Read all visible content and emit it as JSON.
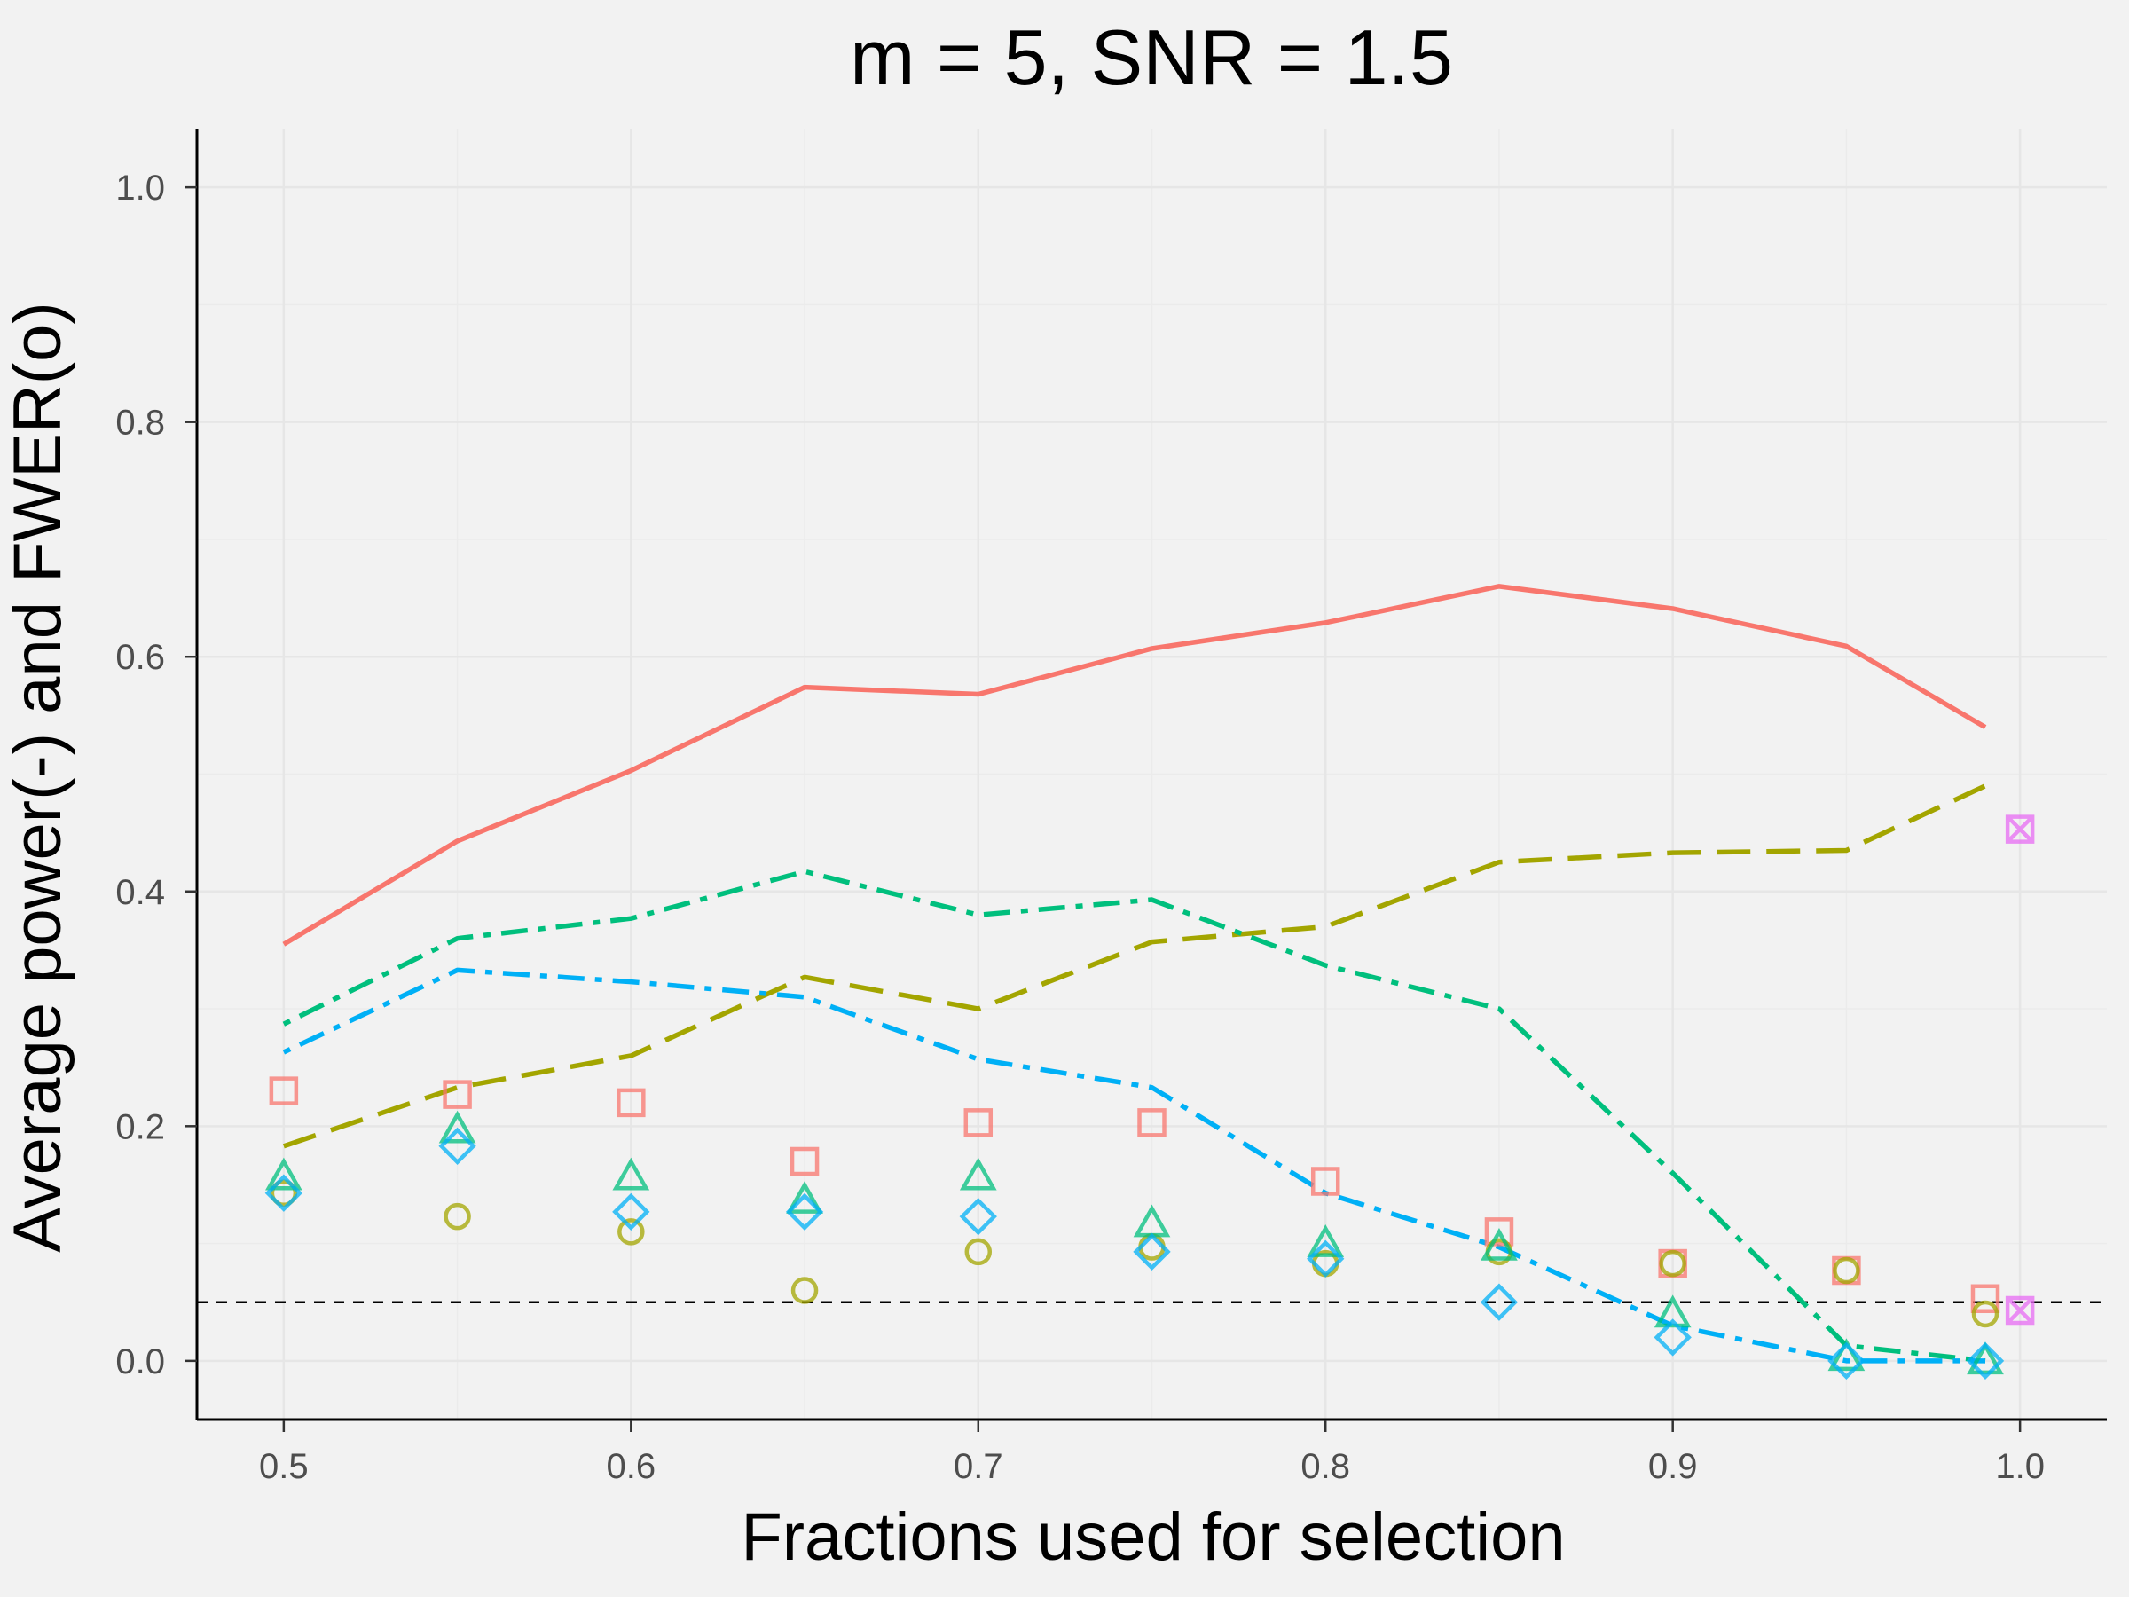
{
  "chart_data": {
    "type": "line",
    "title": "m = 5, SNR = 1.5",
    "xlabel": "Fractions used for selection",
    "ylabel": "Average power(-) and FWER(o)",
    "xlim": [
      0.475,
      1.025
    ],
    "ylim": [
      -0.05,
      1.05
    ],
    "x_ticks": [
      "0.5",
      "0.6",
      "0.7",
      "0.8",
      "0.9",
      "1.0"
    ],
    "y_ticks": [
      "0.0",
      "0.2",
      "0.4",
      "0.6",
      "0.8",
      "1.0"
    ],
    "grid": true,
    "legend": "none",
    "reference_line": {
      "y": 0.05,
      "style": "dashed",
      "color": "#000000"
    },
    "series": [
      {
        "color": "#F8766D",
        "line": "solid",
        "marker": "square",
        "power": {
          "x": [
            0.5,
            0.55,
            0.6,
            0.65,
            0.7,
            0.75,
            0.8,
            0.85,
            0.9,
            0.95,
            0.99
          ],
          "y": [
            0.355,
            0.443,
            0.503,
            0.574,
            0.568,
            0.607,
            0.629,
            0.66,
            0.641,
            0.609,
            0.54
          ]
        },
        "fwer": {
          "x": [
            0.5,
            0.55,
            0.6,
            0.65,
            0.7,
            0.75,
            0.8,
            0.85,
            0.9,
            0.95,
            0.99
          ],
          "y": [
            0.23,
            0.227,
            0.22,
            0.17,
            0.203,
            0.203,
            0.153,
            0.11,
            0.083,
            0.077,
            0.053
          ]
        }
      },
      {
        "color": "#A3A500",
        "line": "longdash",
        "marker": "circle",
        "power": {
          "x": [
            0.5,
            0.55,
            0.6,
            0.65,
            0.7,
            0.75,
            0.8,
            0.85,
            0.9,
            0.95,
            0.99
          ],
          "y": [
            0.183,
            0.233,
            0.26,
            0.327,
            0.3,
            0.357,
            0.37,
            0.425,
            0.433,
            0.435,
            0.49
          ]
        },
        "fwer": {
          "x": [
            0.5,
            0.55,
            0.6,
            0.65,
            0.7,
            0.75,
            0.8,
            0.85,
            0.9,
            0.95,
            0.99
          ],
          "y": [
            0.143,
            0.123,
            0.11,
            0.06,
            0.093,
            0.097,
            0.083,
            0.093,
            0.083,
            0.077,
            0.04
          ]
        }
      },
      {
        "color": "#00BF7D",
        "line": "dotdash",
        "marker": "triangle",
        "power": {
          "x": [
            0.5,
            0.55,
            0.6,
            0.65,
            0.7,
            0.75,
            0.8,
            0.85,
            0.9,
            0.95,
            0.99
          ],
          "y": [
            0.287,
            0.36,
            0.377,
            0.417,
            0.38,
            0.393,
            0.337,
            0.3,
            0.16,
            0.013,
            0.0
          ]
        },
        "fwer": {
          "x": [
            0.5,
            0.55,
            0.6,
            0.65,
            0.7,
            0.75,
            0.8,
            0.85,
            0.9,
            0.95,
            0.99
          ],
          "y": [
            0.157,
            0.197,
            0.157,
            0.137,
            0.157,
            0.117,
            0.1,
            0.097,
            0.04,
            0.003,
            0.0
          ]
        }
      },
      {
        "color": "#00B0F6",
        "line": "dotdash",
        "marker": "diamond",
        "power": {
          "x": [
            0.5,
            0.55,
            0.6,
            0.65,
            0.7,
            0.75,
            0.8,
            0.85,
            0.9,
            0.95,
            0.99
          ],
          "y": [
            0.263,
            0.333,
            0.323,
            0.31,
            0.257,
            0.233,
            0.143,
            0.097,
            0.03,
            0.0,
            0.0
          ]
        },
        "fwer": {
          "x": [
            0.5,
            0.55,
            0.6,
            0.65,
            0.7,
            0.75,
            0.8,
            0.85,
            0.9,
            0.95,
            0.99
          ],
          "y": [
            0.143,
            0.183,
            0.127,
            0.127,
            0.123,
            0.093,
            0.087,
            0.05,
            0.02,
            0.0,
            0.0
          ]
        }
      },
      {
        "color": "#E76BF3",
        "line": "none",
        "marker": "square-cross",
        "power": {
          "x": [
            1.0
          ],
          "y": [
            0.453
          ]
        },
        "fwer": {
          "x": [
            1.0
          ],
          "y": [
            0.043
          ]
        }
      }
    ]
  }
}
